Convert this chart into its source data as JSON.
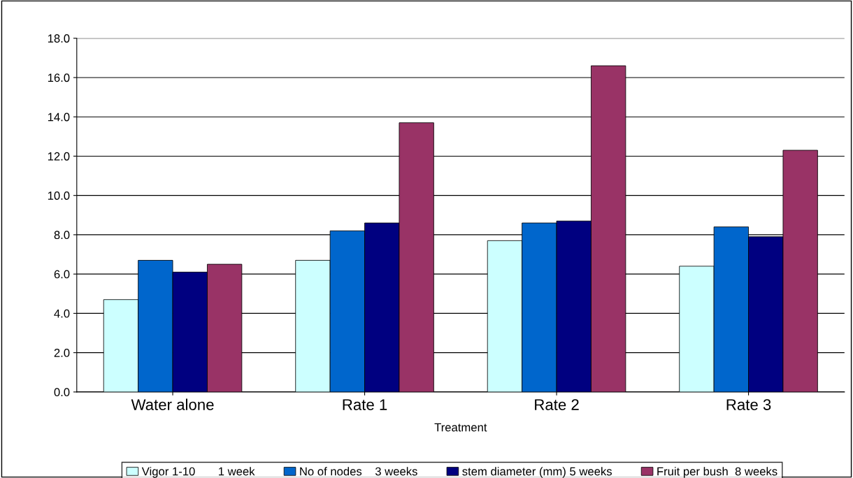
{
  "chart_data": {
    "type": "bar",
    "xlabel": "Treatment",
    "categories": [
      "Water alone",
      "Rate 1",
      "Rate 2",
      "Rate 3"
    ],
    "series": [
      {
        "name": "Vigor 1-10       1 week",
        "color": "#ccffff",
        "values": [
          4.7,
          6.7,
          7.7,
          6.4
        ]
      },
      {
        "name": "No of nodes    3 weeks",
        "color": "#0066cc",
        "values": [
          6.7,
          8.2,
          8.6,
          8.4
        ]
      },
      {
        "name": "stem diameter (mm) 5 weeks",
        "color": "#000080",
        "values": [
          6.1,
          8.6,
          8.7,
          7.9
        ]
      },
      {
        "name": "Fruit per bush  8 weeks",
        "color": "#993366",
        "values": [
          6.5,
          13.7,
          16.6,
          12.3
        ]
      }
    ],
    "ylim": [
      0,
      18
    ],
    "yticks": [
      {
        "value": 0,
        "label": "0.0"
      },
      {
        "value": 2,
        "label": "2.0"
      },
      {
        "value": 4,
        "label": "4.0"
      },
      {
        "value": 6,
        "label": "6.0"
      },
      {
        "value": 8,
        "label": "8.0"
      },
      {
        "value": 10,
        "label": "10.0"
      },
      {
        "value": 12,
        "label": "12.0"
      },
      {
        "value": 14,
        "label": "14.0"
      },
      {
        "value": 16,
        "label": "16.0"
      },
      {
        "value": 18,
        "label": "18.0"
      }
    ],
    "grid": "y",
    "legend": "bottom"
  }
}
